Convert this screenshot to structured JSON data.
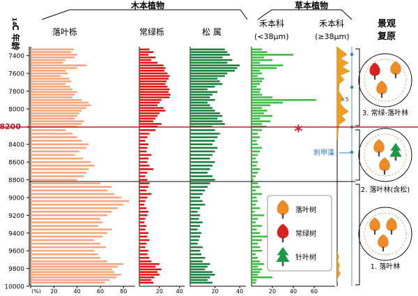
{
  "chart_data": {
    "type": "bar",
    "orientation": "horizontal",
    "y_axis": {
      "label_prefix": "14",
      "label_main": "C 年龄",
      "range": [
        7300,
        10000
      ],
      "ticks": [
        "7400",
        "7600",
        "7800",
        "8000",
        "8200",
        "8400",
        "8600",
        "8800",
        "9000",
        "9200",
        "9400",
        "9600",
        "9800",
        "10000"
      ],
      "highlight_tick": "8200"
    },
    "groups": {
      "woody": "木本植物",
      "herb": "草本植物",
      "landscape_line1": "景观",
      "landscape_line2": "复原"
    },
    "panels": [
      {
        "id": "deciduous-oak",
        "title": "落叶栎",
        "color": "#f5a67f",
        "xlim": [
          0,
          90
        ],
        "ticks": [
          "(%)",
          "20",
          "40",
          "60",
          "80"
        ]
      },
      {
        "id": "evergreen-oak",
        "title": "常绿栎",
        "color": "#dc1515",
        "xlim": [
          0,
          45
        ],
        "ticks": [
          "20",
          "40"
        ]
      },
      {
        "id": "pinus",
        "title": "松 属",
        "color": "#18803a",
        "xlim": [
          0,
          45
        ],
        "ticks": [
          "20",
          "40"
        ]
      },
      {
        "id": "poaceae-small",
        "title_line1": "禾本科",
        "title_line2": "(<38μm)",
        "color": "#3dbb45",
        "xlim": [
          0,
          80
        ],
        "ticks": [
          "20",
          "40",
          "60"
        ]
      },
      {
        "id": "poaceae-large",
        "title_line1": "禾本科",
        "title_line2": "(≥38μm)",
        "color": "#f0a020",
        "xlim": [
          0,
          5
        ]
      }
    ],
    "depth_ages": [
      7330,
      7360,
      7390,
      7420,
      7450,
      7480,
      7510,
      7540,
      7570,
      7600,
      7630,
      7660,
      7690,
      7720,
      7750,
      7780,
      7810,
      7840,
      7870,
      7900,
      7930,
      7960,
      7990,
      8020,
      8050,
      8080,
      8110,
      8140,
      8170,
      8200,
      8240,
      8280,
      8320,
      8360,
      8400,
      8440,
      8480,
      8520,
      8560,
      8600,
      8640,
      8680,
      8720,
      8760,
      8800,
      8840,
      8880,
      8920,
      8960,
      9000,
      9040,
      9080,
      9120,
      9160,
      9200,
      9240,
      9280,
      9320,
      9360,
      9400,
      9440,
      9480,
      9520,
      9560,
      9600,
      9640,
      9680,
      9720,
      9750,
      9780,
      9810,
      9840,
      9870,
      9900,
      9930,
      9960
    ],
    "series": [
      {
        "panel": "deciduous-oak",
        "values": [
          37,
          35,
          40,
          38,
          30,
          28,
          48,
          40,
          30,
          32,
          26,
          33,
          35,
          30,
          34,
          36,
          40,
          38,
          36,
          44,
          50,
          52,
          48,
          44,
          42,
          40,
          38,
          46,
          44,
          40,
          30,
          36,
          40,
          44,
          50,
          48,
          42,
          38,
          45,
          52,
          55,
          50,
          48,
          46,
          40,
          60,
          70,
          66,
          72,
          78,
          85,
          80,
          75,
          70,
          66,
          60,
          62,
          58,
          70,
          66,
          62,
          55,
          60,
          65,
          55,
          58,
          60,
          66,
          80,
          75,
          70,
          72,
          78,
          74,
          68,
          64
        ]
      },
      {
        "panel": "evergreen-oak",
        "values": [
          10,
          14,
          9,
          16,
          12,
          18,
          24,
          26,
          25,
          28,
          30,
          29,
          27,
          26,
          28,
          30,
          29,
          31,
          30,
          22,
          20,
          18,
          24,
          26,
          20,
          18,
          16,
          14,
          22,
          18,
          16,
          10,
          8,
          6,
          9,
          8,
          7,
          12,
          9,
          8,
          10,
          14,
          8,
          6,
          8,
          10,
          9,
          7,
          12,
          8,
          6,
          5,
          7,
          9,
          8,
          6,
          5,
          7,
          6,
          9,
          8,
          10,
          7,
          6,
          9,
          8,
          10,
          12,
          20,
          16,
          22,
          18,
          20,
          15,
          12,
          14
        ]
      },
      {
        "panel": "pinus",
        "values": [
          28,
          30,
          32,
          26,
          34,
          30,
          40,
          38,
          36,
          30,
          28,
          22,
          24,
          26,
          20,
          14,
          22,
          18,
          16,
          20,
          14,
          16,
          18,
          20,
          24,
          26,
          22,
          26,
          28,
          18,
          20,
          24,
          22,
          20,
          18,
          22,
          20,
          18,
          16,
          20,
          18,
          16,
          14,
          18,
          20,
          16,
          14,
          12,
          10,
          8,
          10,
          12,
          8,
          6,
          8,
          7,
          10,
          8,
          6,
          9,
          8,
          7,
          6,
          10,
          8,
          9,
          12,
          10,
          16,
          14,
          12,
          18,
          20,
          16,
          14,
          18
        ]
      },
      {
        "panel": "poaceae-small",
        "values": [
          10,
          15,
          40,
          12,
          20,
          8,
          30,
          24,
          8,
          10,
          6,
          12,
          10,
          8,
          5,
          9,
          8,
          10,
          20,
          62,
          30,
          18,
          10,
          15,
          12,
          20,
          8,
          18,
          10,
          14,
          10,
          6,
          8,
          5,
          6,
          10,
          8,
          6,
          4,
          6,
          5,
          8,
          6,
          4,
          2,
          6,
          8,
          4,
          10,
          5,
          6,
          4,
          8,
          3,
          12,
          6,
          4,
          10,
          5,
          8,
          20,
          10,
          6,
          8,
          10,
          4,
          6,
          8,
          12,
          6,
          10,
          8,
          6,
          20,
          5,
          4
        ]
      }
    ],
    "poaceae_large_scale_label": "×5",
    "event_marker": "*",
    "spine_label": "刺甲藻",
    "landscapes": [
      {
        "label": "3. 常绿-落叶林"
      },
      {
        "label": "2. 落叶林(含松)"
      },
      {
        "label": "1. 落叶林"
      }
    ],
    "legend": [
      {
        "label": "落叶树",
        "color": "#f08a22",
        "icon": "deciduous-tree-icon"
      },
      {
        "label": "常绿树",
        "color": "#d92020",
        "icon": "evergreen-tree-icon"
      },
      {
        "label": "针叶树",
        "color": "#1a9a45",
        "icon": "conifer-tree-icon"
      }
    ]
  }
}
